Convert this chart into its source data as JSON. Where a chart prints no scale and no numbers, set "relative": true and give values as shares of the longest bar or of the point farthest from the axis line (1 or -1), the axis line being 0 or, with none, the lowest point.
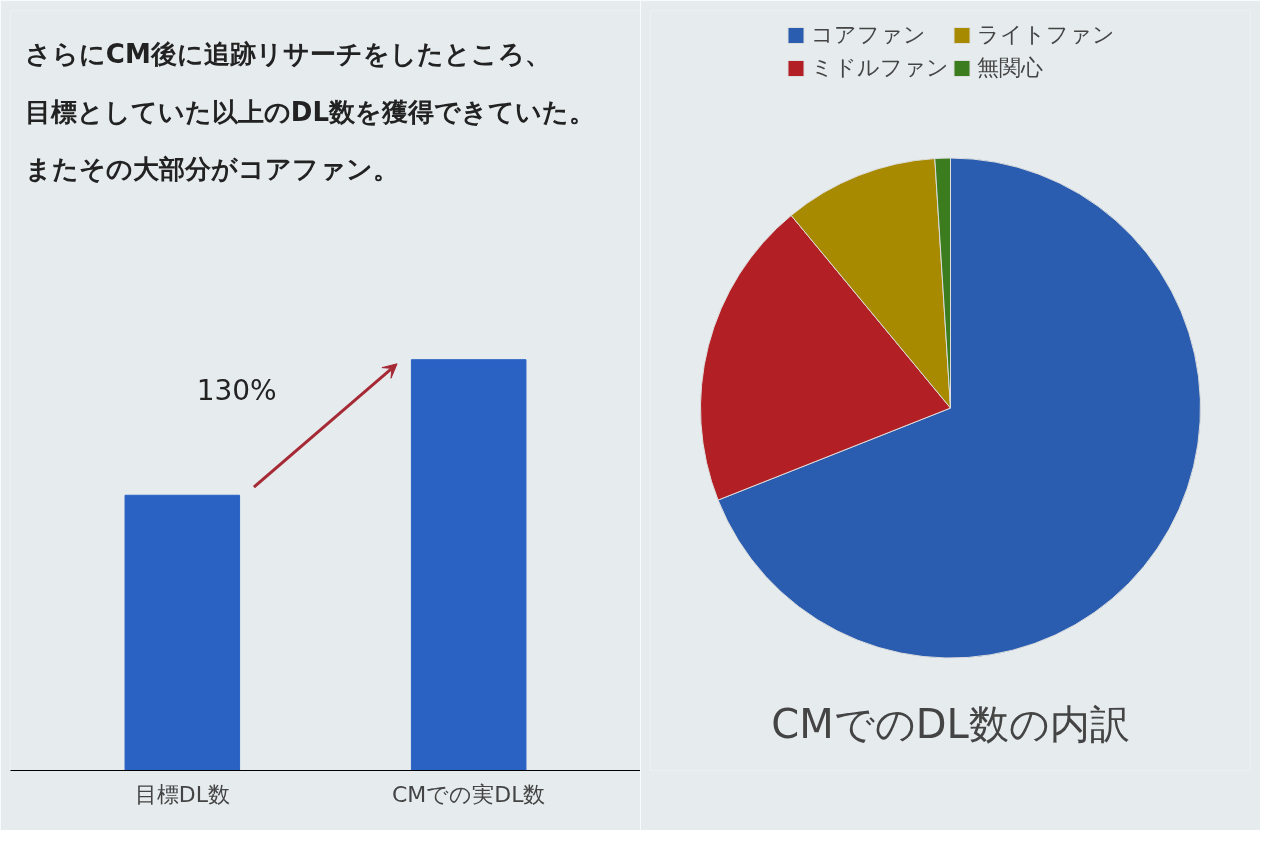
{
  "chart_data": [
    {
      "type": "bar",
      "title": "さらにCM後に追跡リサーチをしたところ、目標としていた以上のDL数を獲得できていた。またその大部分がコアファン。",
      "categories": [
        "目標DL数",
        "CMでの実DL数"
      ],
      "values": [
        0.67,
        1
      ],
      "color": "#2a62c4",
      "relative": true,
      "annotations": [
        "130%"
      ],
      "grid": false,
      "legend": false
    },
    {
      "type": "pie",
      "title": "CMでのDL数の内訳",
      "categories": [
        "コアファン",
        "ミドルファン",
        "ライトファン",
        "無関心"
      ],
      "values": [
        69,
        20,
        10,
        1
      ],
      "colors": [
        "#2a5db0",
        "#b22025",
        "#a88a00",
        "#3b7d1e"
      ],
      "legend": "top"
    }
  ]
}
